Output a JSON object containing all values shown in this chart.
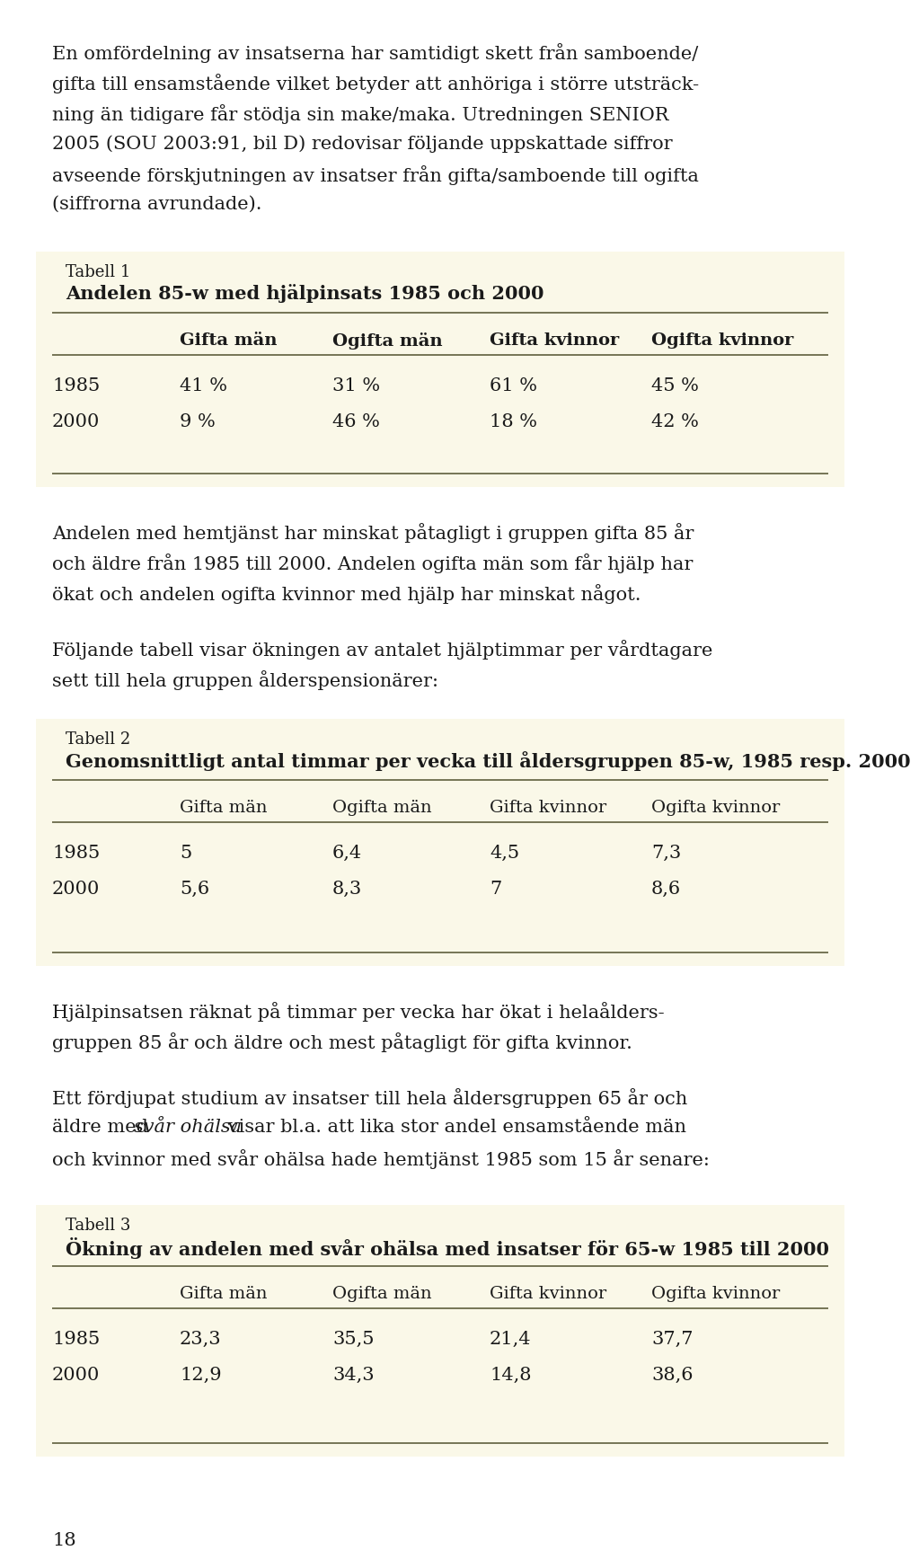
{
  "bg_color": "#ffffff",
  "table_bg_color": "#faf8e8",
  "body_text_color": "#1a1a1a",
  "para1_lines": [
    "En omfördelning av insatserna har samtidigt skett från samboende/",
    "gifta till ensamstående vilket betyder att anhöriga i större utsträck-",
    "ning än tidigare får stödja sin make/maka. Utredningen SENIOR",
    "2005 (SOU 2003:91, bil D) redovisar följande uppskattade siffror",
    "avseende förskjutningen av insatser från gifta/samboende till ogifta",
    "(siffrorna avrundade)."
  ],
  "tabell1_label": "Tabell 1",
  "tabell1_title": "Andelen 85-w med hjälpinsats 1985 och 2000",
  "tabell1_cols": [
    "",
    "Gifta män",
    "Ogifta män",
    "Gifta kvinnor",
    "Ogifta kvinnor"
  ],
  "tabell1_rows": [
    [
      "1985",
      "41 %",
      "31 %",
      "61 %",
      "45 %"
    ],
    [
      "2000",
      "9 %",
      "46 %",
      "18 %",
      "42 %"
    ]
  ],
  "para2_lines": [
    "Andelen med hemtjänst har minskat påtagligt i gruppen gifta 85 år",
    "och äldre från 1985 till 2000. Andelen ogifta män som får hjälp har",
    "ökat och andelen ogifta kvinnor med hjälp har minskat något."
  ],
  "para3_lines": [
    "Följande tabell visar ökningen av antalet hjälptimmar per vårdtagare",
    "sett till hela gruppen ålderspensionärer:"
  ],
  "tabell2_label": "Tabell 2",
  "tabell2_title": "Genomsnittligt antal timmar per vecka till åldersgruppen 85-w, 1985 resp. 2000",
  "tabell2_cols": [
    "",
    "Gifta män",
    "Ogifta män",
    "Gifta kvinnor",
    "Ogifta kvinnor"
  ],
  "tabell2_rows": [
    [
      "1985",
      "5",
      "6,4",
      "4,5",
      "7,3"
    ],
    [
      "2000",
      "5,6",
      "8,3",
      "7",
      "8,6"
    ]
  ],
  "para4_lines": [
    "Hjälpinsatsen räknat på timmar per vecka har ökat i helaålders-",
    "gruppen 85 år och äldre och mest påtagligt för gifta kvinnor."
  ],
  "para5_line1": "Ett fördjupat studium av insatser till hela åldersgruppen 65 år och",
  "para5_line2_a": "äldre med ",
  "para5_line2_b": "svår ohälsa",
  "para5_line2_c": " visar bl.a. att lika stor andel ensamstående män",
  "para5_line3": "och kvinnor med svår ohälsa hade hemtjänst 1985 som 15 år senare:",
  "tabell3_label": "Tabell 3",
  "tabell3_title": "Ökning av andelen med svår ohälsa med insatser för 65-w 1985 till 2000",
  "tabell3_cols": [
    "",
    "Gifta män",
    "Ogifta män",
    "Gifta kvinnor",
    "Ogifta kvinnor"
  ],
  "tabell3_rows": [
    [
      "1985",
      "23,3",
      "35,5",
      "21,4",
      "37,7"
    ],
    [
      "2000",
      "12,9",
      "34,3",
      "14,8",
      "38,6"
    ]
  ],
  "page_number": "18",
  "line_color": "#6b6b4a",
  "body_font_size": 15.0,
  "table_label_font_size": 13.0,
  "table_title_font_size": 15.0,
  "table_header_font_size": 14.0,
  "table_data_font_size": 15.0
}
